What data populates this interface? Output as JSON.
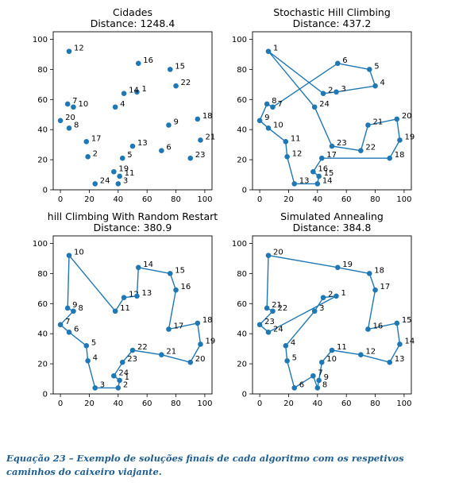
{
  "caption": "Equação 23 – Exemplo de soluções finais de cada algoritmo com os respetivos caminhos do caixeiro viajante.",
  "colors": {
    "series": "#1f77b4",
    "axes": "#000000",
    "text": "#000000",
    "caption": "#1f5d8f"
  },
  "chart_data": [
    {
      "type": "scatter",
      "title": "Cidades",
      "subtitle": "Distance: 1248.4",
      "xlim": [
        -5,
        105
      ],
      "ylim": [
        0,
        105
      ],
      "xticks": [
        0,
        20,
        40,
        60,
        80,
        100
      ],
      "yticks": [
        0,
        20,
        40,
        60,
        80,
        100
      ],
      "grid": false,
      "points": [
        {
          "label": "1",
          "x": 53,
          "y": 65
        },
        {
          "label": "2",
          "x": 19,
          "y": 22
        },
        {
          "label": "3",
          "x": 40,
          "y": 4
        },
        {
          "label": "4",
          "x": 38,
          "y": 55
        },
        {
          "label": "5",
          "x": 43,
          "y": 21
        },
        {
          "label": "6",
          "x": 70,
          "y": 26
        },
        {
          "label": "7",
          "x": 5,
          "y": 57
        },
        {
          "label": "8",
          "x": 6,
          "y": 41
        },
        {
          "label": "9",
          "x": 75,
          "y": 43
        },
        {
          "label": "10",
          "x": 9,
          "y": 55
        },
        {
          "label": "11",
          "x": 41,
          "y": 9
        },
        {
          "label": "12",
          "x": 6,
          "y": 92
        },
        {
          "label": "13",
          "x": 50,
          "y": 29
        },
        {
          "label": "14",
          "x": 44,
          "y": 64
        },
        {
          "label": "15",
          "x": 76,
          "y": 80
        },
        {
          "label": "16",
          "x": 54,
          "y": 84
        },
        {
          "label": "17",
          "x": 18,
          "y": 32
        },
        {
          "label": "18",
          "x": 95,
          "y": 47
        },
        {
          "label": "19",
          "x": 37,
          "y": 12
        },
        {
          "label": "20",
          "x": 0,
          "y": 46
        },
        {
          "label": "21",
          "x": 97,
          "y": 33
        },
        {
          "label": "22",
          "x": 80,
          "y": 69
        },
        {
          "label": "23",
          "x": 90,
          "y": 21
        },
        {
          "label": "24",
          "x": 24,
          "y": 4
        }
      ],
      "route": []
    },
    {
      "type": "line",
      "title": "Stochastic Hill Climbing",
      "subtitle": "Distance: 437.2",
      "xlim": [
        -5,
        105
      ],
      "ylim": [
        0,
        105
      ],
      "xticks": [
        0,
        20,
        40,
        60,
        80,
        100
      ],
      "yticks": [
        0,
        20,
        40,
        60,
        80,
        100
      ],
      "grid": false,
      "points": [
        {
          "label": "1",
          "x": 6,
          "y": 92
        },
        {
          "label": "2",
          "x": 44,
          "y": 64
        },
        {
          "label": "3",
          "x": 53,
          "y": 65
        },
        {
          "label": "4",
          "x": 80,
          "y": 69
        },
        {
          "label": "5",
          "x": 76,
          "y": 80
        },
        {
          "label": "6",
          "x": 54,
          "y": 84
        },
        {
          "label": "7",
          "x": 9,
          "y": 55
        },
        {
          "label": "8",
          "x": 5,
          "y": 57
        },
        {
          "label": "9",
          "x": 0,
          "y": 46
        },
        {
          "label": "10",
          "x": 6,
          "y": 41
        },
        {
          "label": "11",
          "x": 18,
          "y": 32
        },
        {
          "label": "12",
          "x": 19,
          "y": 22
        },
        {
          "label": "13",
          "x": 24,
          "y": 4
        },
        {
          "label": "14",
          "x": 40,
          "y": 4
        },
        {
          "label": "15",
          "x": 41,
          "y": 9
        },
        {
          "label": "16",
          "x": 37,
          "y": 12
        },
        {
          "label": "17",
          "x": 43,
          "y": 21
        },
        {
          "label": "18",
          "x": 90,
          "y": 21
        },
        {
          "label": "19",
          "x": 97,
          "y": 33
        },
        {
          "label": "20",
          "x": 95,
          "y": 47
        },
        {
          "label": "21",
          "x": 75,
          "y": 43
        },
        {
          "label": "22",
          "x": 70,
          "y": 26
        },
        {
          "label": "23",
          "x": 50,
          "y": 29
        },
        {
          "label": "24",
          "x": 38,
          "y": 55
        }
      ],
      "route": [
        1,
        2,
        3,
        4,
        5,
        6,
        7,
        8,
        9,
        10,
        11,
        12,
        13,
        14,
        15,
        16,
        17,
        18,
        19,
        20,
        21,
        22,
        23,
        24,
        1
      ]
    },
    {
      "type": "line",
      "title": "hill Climbing With Random Restart",
      "subtitle": "Distance: 380.9",
      "xlim": [
        -5,
        105
      ],
      "ylim": [
        0,
        105
      ],
      "xticks": [
        0,
        20,
        40,
        60,
        80,
        100
      ],
      "yticks": [
        0,
        20,
        40,
        60,
        80,
        100
      ],
      "grid": false,
      "points": [
        {
          "label": "1",
          "x": 41,
          "y": 9
        },
        {
          "label": "2",
          "x": 40,
          "y": 4
        },
        {
          "label": "3",
          "x": 24,
          "y": 4
        },
        {
          "label": "4",
          "x": 19,
          "y": 22
        },
        {
          "label": "5",
          "x": 18,
          "y": 32
        },
        {
          "label": "6",
          "x": 6,
          "y": 41
        },
        {
          "label": "7",
          "x": 0,
          "y": 46
        },
        {
          "label": "8",
          "x": 9,
          "y": 55
        },
        {
          "label": "9",
          "x": 5,
          "y": 57
        },
        {
          "label": "10",
          "x": 6,
          "y": 92
        },
        {
          "label": "11",
          "x": 38,
          "y": 55
        },
        {
          "label": "12",
          "x": 44,
          "y": 64
        },
        {
          "label": "13",
          "x": 53,
          "y": 65
        },
        {
          "label": "14",
          "x": 54,
          "y": 84
        },
        {
          "label": "15",
          "x": 76,
          "y": 80
        },
        {
          "label": "16",
          "x": 80,
          "y": 69
        },
        {
          "label": "17",
          "x": 75,
          "y": 43
        },
        {
          "label": "18",
          "x": 95,
          "y": 47
        },
        {
          "label": "19",
          "x": 97,
          "y": 33
        },
        {
          "label": "20",
          "x": 90,
          "y": 21
        },
        {
          "label": "21",
          "x": 70,
          "y": 26
        },
        {
          "label": "22",
          "x": 50,
          "y": 29
        },
        {
          "label": "23",
          "x": 43,
          "y": 21
        },
        {
          "label": "24",
          "x": 37,
          "y": 12
        }
      ],
      "route": [
        1,
        2,
        3,
        4,
        5,
        6,
        7,
        8,
        9,
        10,
        11,
        12,
        13,
        14,
        15,
        16,
        17,
        18,
        19,
        20,
        21,
        22,
        23,
        24,
        1
      ]
    },
    {
      "type": "line",
      "title": "Simulated Annealing",
      "subtitle": "Distance: 384.8",
      "xlim": [
        -5,
        105
      ],
      "ylim": [
        0,
        105
      ],
      "xticks": [
        0,
        20,
        40,
        60,
        80,
        100
      ],
      "yticks": [
        0,
        20,
        40,
        60,
        80,
        100
      ],
      "grid": false,
      "points": [
        {
          "label": "1",
          "x": 53,
          "y": 65
        },
        {
          "label": "2",
          "x": 44,
          "y": 64
        },
        {
          "label": "3",
          "x": 38,
          "y": 55
        },
        {
          "label": "4",
          "x": 18,
          "y": 32
        },
        {
          "label": "5",
          "x": 19,
          "y": 22
        },
        {
          "label": "6",
          "x": 24,
          "y": 4
        },
        {
          "label": "7",
          "x": 37,
          "y": 12
        },
        {
          "label": "8",
          "x": 40,
          "y": 4
        },
        {
          "label": "9",
          "x": 41,
          "y": 9
        },
        {
          "label": "10",
          "x": 43,
          "y": 21
        },
        {
          "label": "11",
          "x": 50,
          "y": 29
        },
        {
          "label": "12",
          "x": 70,
          "y": 26
        },
        {
          "label": "13",
          "x": 90,
          "y": 21
        },
        {
          "label": "14",
          "x": 97,
          "y": 33
        },
        {
          "label": "15",
          "x": 95,
          "y": 47
        },
        {
          "label": "16",
          "x": 75,
          "y": 43
        },
        {
          "label": "17",
          "x": 80,
          "y": 69
        },
        {
          "label": "18",
          "x": 76,
          "y": 80
        },
        {
          "label": "19",
          "x": 54,
          "y": 84
        },
        {
          "label": "20",
          "x": 6,
          "y": 92
        },
        {
          "label": "21",
          "x": 5,
          "y": 57
        },
        {
          "label": "22",
          "x": 9,
          "y": 55
        },
        {
          "label": "23",
          "x": 0,
          "y": 46
        },
        {
          "label": "24",
          "x": 6,
          "y": 41
        }
      ],
      "route": [
        1,
        2,
        3,
        4,
        5,
        6,
        7,
        8,
        9,
        10,
        11,
        12,
        13,
        14,
        15,
        16,
        17,
        18,
        19,
        20,
        21,
        22,
        23,
        24,
        1
      ]
    }
  ]
}
